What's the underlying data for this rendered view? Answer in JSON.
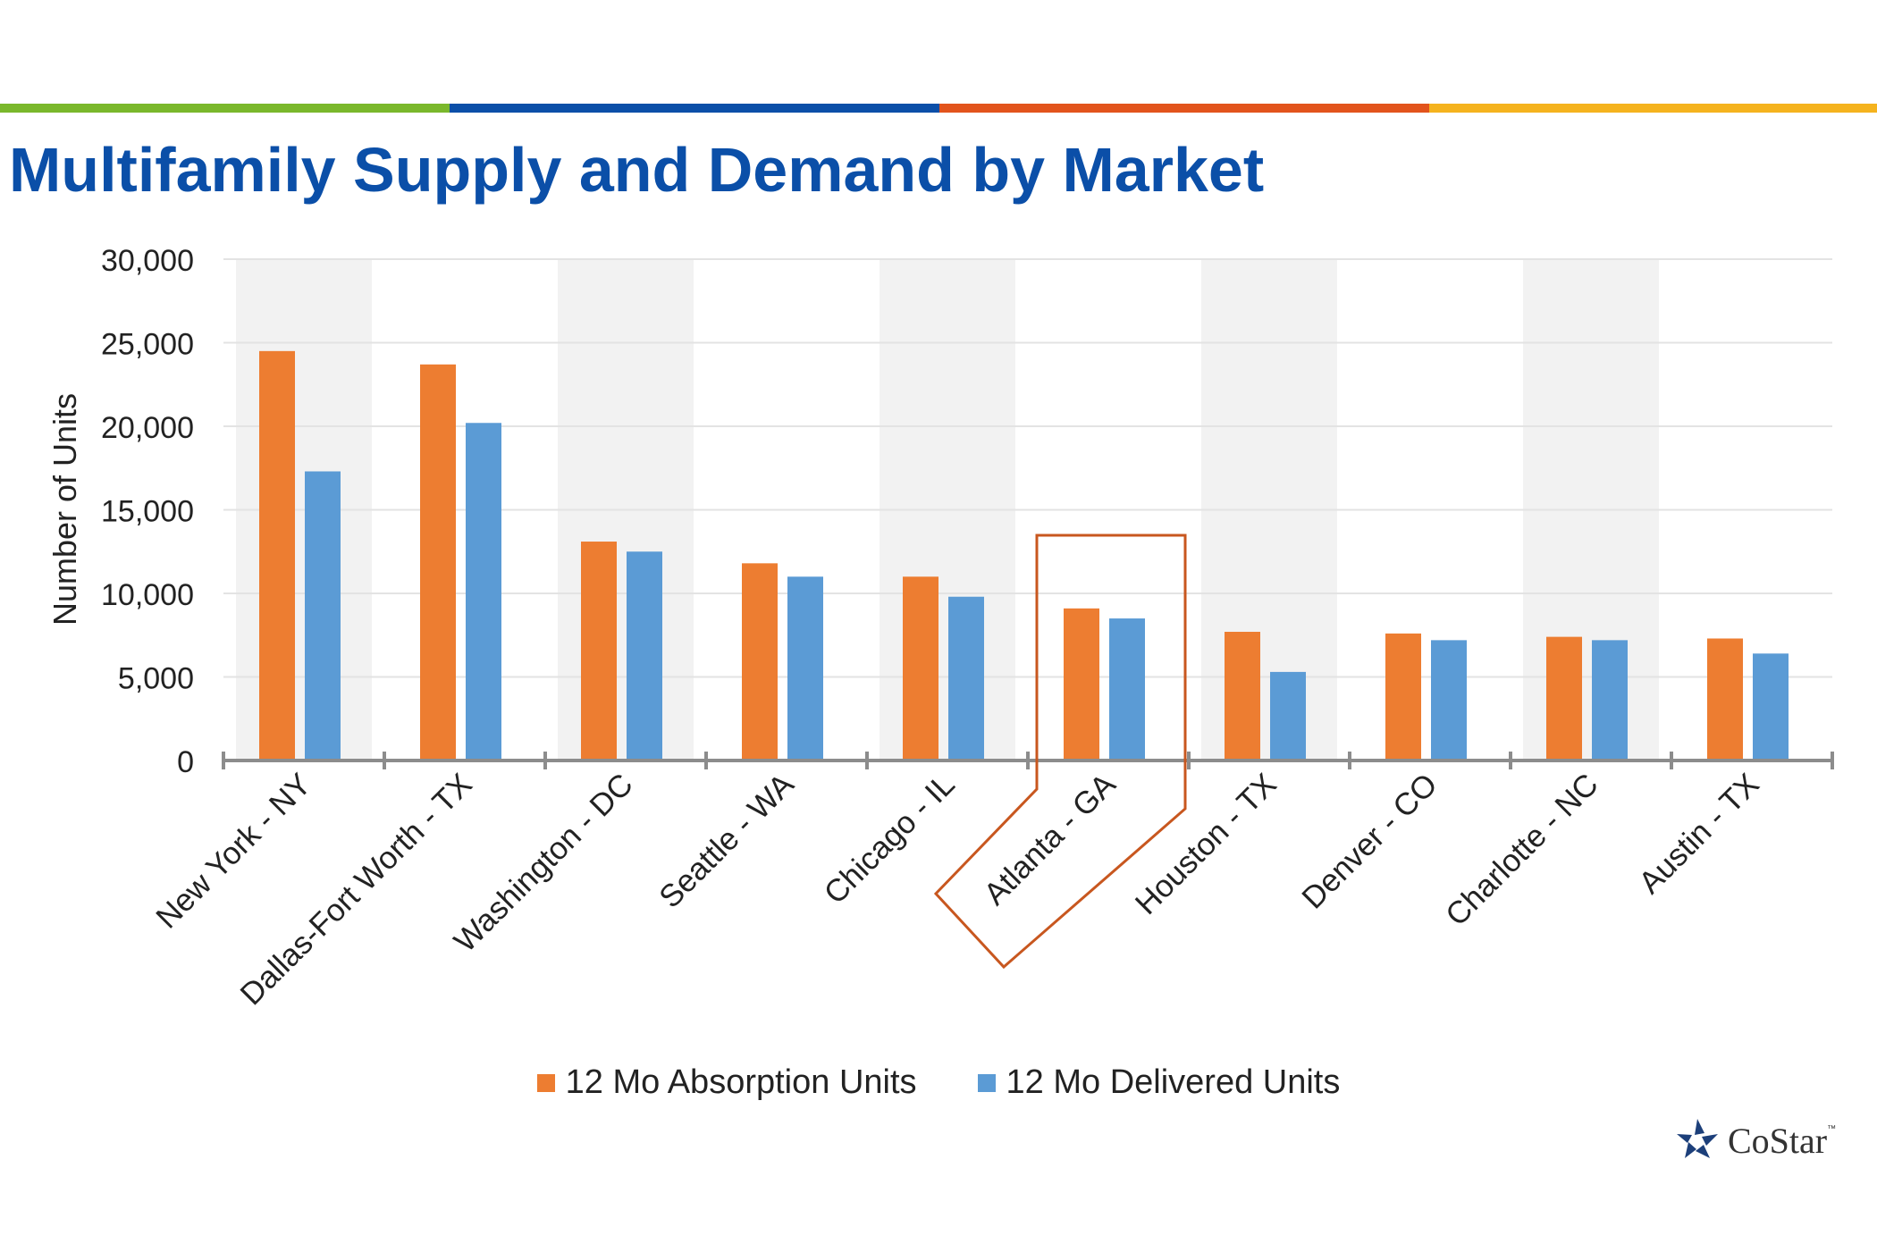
{
  "title": "Multifamily Supply and Demand by Market",
  "colors": {
    "title": "#0b4fa8",
    "stripe": [
      "#7ab82c",
      "#0b4fa8",
      "#e2541c",
      "#f5b31e"
    ],
    "band": "#f2f2f2",
    "highlight": "#c8571f"
  },
  "chart_data": {
    "type": "bar",
    "categories": [
      "New York - NY",
      "Dallas-Fort Worth - TX",
      "Washington - DC",
      "Seattle - WA",
      "Chicago - IL",
      "Atlanta - GA",
      "Houston - TX",
      "Denver - CO",
      "Charlotte - NC",
      "Austin - TX"
    ],
    "series": [
      {
        "name": "12 Mo Absorption Units",
        "color": "#ed7d31",
        "values": [
          24500,
          23700,
          13100,
          11800,
          11000,
          9100,
          7700,
          7600,
          7400,
          7300
        ]
      },
      {
        "name": "12 Mo Delivered Units",
        "color": "#5b9bd5",
        "values": [
          17300,
          20200,
          12500,
          11000,
          9800,
          8500,
          5300,
          7200,
          7200,
          6400
        ]
      }
    ],
    "ylabel": "Number of Units",
    "xlabel": "",
    "ylim": [
      0,
      30000
    ],
    "yticks": [
      "0",
      "5,000",
      "10,000",
      "15,000",
      "20,000",
      "25,000",
      "30,000"
    ],
    "grid": true,
    "legend": "bottom",
    "highlighted_category": "Atlanta - GA"
  },
  "logo": {
    "text": "CoStar",
    "tm": "™"
  }
}
